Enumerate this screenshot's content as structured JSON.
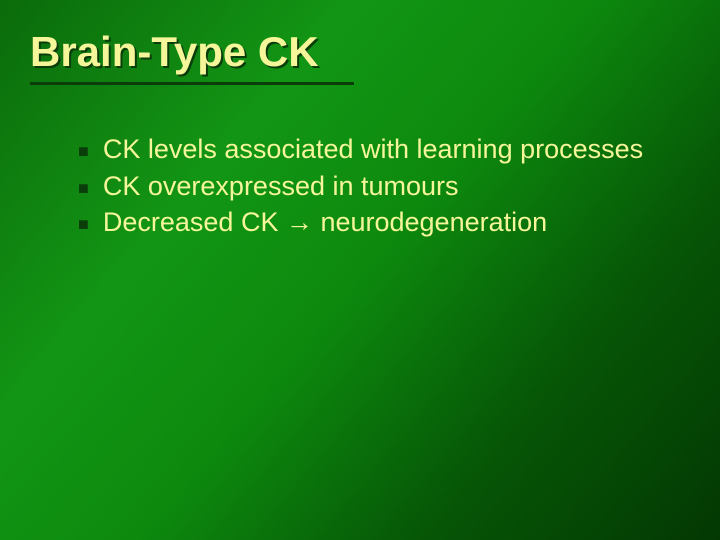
{
  "slide": {
    "title": "Brain-Type CK",
    "title_color": "#f5f59a",
    "title_shadow_color": "#0a3d0a",
    "title_fontsize": 42,
    "title_fontweight": 900,
    "background_gradient": [
      "#0a6b0a",
      "#0f8010",
      "#129514",
      "#0d8a0e",
      "#065506",
      "#033803"
    ],
    "body_color": "#f5f59a",
    "body_fontsize": 27,
    "bullet_marker": "■",
    "bullet_marker_color": "#0a3d0a",
    "bullets": [
      "CK levels associated with learning processes",
      "CK overexpressed in tumours",
      "Decreased CK → neurodegeneration"
    ]
  }
}
